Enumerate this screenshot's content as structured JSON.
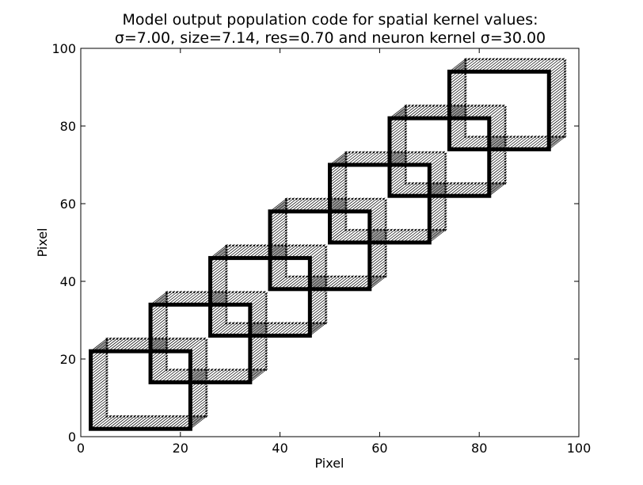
{
  "chart_data": {
    "type": "quiver",
    "title_lines": [
      "Model output population code for spatial kernel values:",
      "σ=7.00, size=7.14, res=0.70 and neuron kernel σ=30.00"
    ],
    "xlabel": "Pixel",
    "ylabel": "Pixel",
    "xlim": [
      0,
      100
    ],
    "ylim": [
      0,
      100
    ],
    "xticks": [
      0,
      20,
      40,
      60,
      80,
      100
    ],
    "yticks": [
      0,
      20,
      40,
      60,
      80,
      100
    ],
    "grid": false,
    "squares": [
      {
        "x0": 2,
        "y0": 2,
        "x1": 22,
        "y1": 22
      },
      {
        "x0": 14,
        "y0": 14,
        "x1": 34,
        "y1": 34
      },
      {
        "x0": 26,
        "y0": 26,
        "x1": 46,
        "y1": 46
      },
      {
        "x0": 38,
        "y0": 38,
        "x1": 58,
        "y1": 58
      },
      {
        "x0": 50,
        "y0": 50,
        "x1": 70,
        "y1": 70
      },
      {
        "x0": 62,
        "y0": 62,
        "x1": 82,
        "y1": 82
      },
      {
        "x0": 74,
        "y0": 74,
        "x1": 94,
        "y1": 94
      }
    ],
    "arrow_vector": [
      3.5,
      3.5
    ],
    "arrow_spacing": 0.7,
    "colors": {
      "squares": "#000000",
      "arrows": "#000000",
      "axes": "#000000",
      "background": "#ffffff"
    }
  }
}
